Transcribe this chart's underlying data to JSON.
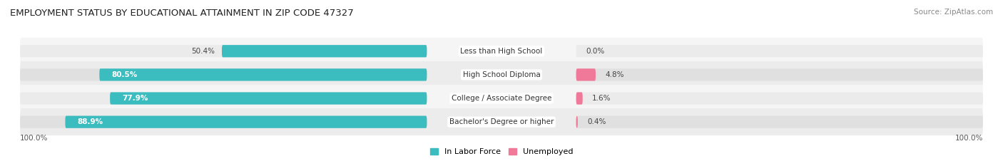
{
  "title": "EMPLOYMENT STATUS BY EDUCATIONAL ATTAINMENT IN ZIP CODE 47327",
  "source": "Source: ZipAtlas.com",
  "categories": [
    "Less than High School",
    "High School Diploma",
    "College / Associate Degree",
    "Bachelor's Degree or higher"
  ],
  "labor_force": [
    50.4,
    80.5,
    77.9,
    88.9
  ],
  "unemployed": [
    0.0,
    4.8,
    1.6,
    0.4
  ],
  "labor_force_color": "#3BBCBF",
  "unemployed_color": "#F07898",
  "bar_bg_color_light": "#EBEBEB",
  "bar_bg_color_dark": "#E0E0E0",
  "row_bg_light": "#F5F5F5",
  "row_bg_dark": "#ECECEC",
  "title_fontsize": 9.5,
  "label_fontsize": 7.5,
  "tick_fontsize": 7.5,
  "legend_fontsize": 8,
  "source_fontsize": 7.5,
  "left_axis_label": "100.0%",
  "right_axis_label": "100.0%"
}
